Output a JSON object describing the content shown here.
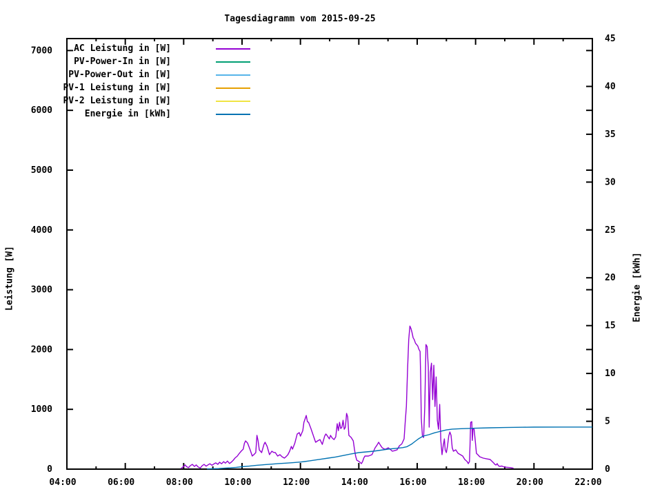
{
  "title": "Tagesdiagramm vom 2015-09-25",
  "colors": {
    "background": "#ffffff",
    "axis": "#000000",
    "ac_leistung": "#9400d3",
    "pv_power_in": "#009e73",
    "pv_power_out": "#56b4e9",
    "pv1_leistung": "#e69f00",
    "pv2_leistung": "#f0e442",
    "energie": "#0072b2"
  },
  "axes": {
    "x": {
      "start_hour": 4,
      "end_hour": 22,
      "major_tick_hours": [
        4,
        6,
        8,
        10,
        12,
        14,
        16,
        18,
        20,
        22
      ],
      "tick_labels": [
        "04:00",
        "06:00",
        "08:00",
        "10:00",
        "12:00",
        "14:00",
        "16:00",
        "18:00",
        "20:00",
        "22:00"
      ],
      "minor_tick_hours": [
        5,
        7,
        9,
        11,
        13,
        15,
        17,
        19,
        21
      ]
    },
    "y_left": {
      "label": "Leistung [W]",
      "min": 0,
      "max": 7200,
      "ticks": [
        0,
        1000,
        2000,
        3000,
        4000,
        5000,
        6000,
        7000
      ]
    },
    "y_right": {
      "label": "Energie [kWh]",
      "min": 0,
      "max": 45,
      "ticks": [
        0,
        5,
        10,
        15,
        20,
        25,
        30,
        35,
        40,
        45
      ]
    }
  },
  "chart_data": {
    "type": "line",
    "title": "Tagesdiagramm vom 2015-09-25",
    "xlabel": "",
    "ylabel_left": "Leistung [W]",
    "ylabel_right": "Energie [kWh]",
    "x_unit": "time_of_day_hours",
    "xlim_hours": [
      4,
      22
    ],
    "ylim_left": [
      0,
      7200
    ],
    "ylim_right": [
      0,
      45
    ],
    "grid": false,
    "legend_position": "top-left-inside",
    "series": [
      {
        "name": "AC Leistung in [W]",
        "color": "#9400d3",
        "axis": "left",
        "visible": true,
        "points": [
          [
            7.9,
            8
          ],
          [
            7.95,
            25
          ],
          [
            8.0,
            45
          ],
          [
            8.05,
            70
          ],
          [
            8.1,
            40
          ],
          [
            8.17,
            25
          ],
          [
            8.23,
            60
          ],
          [
            8.3,
            80
          ],
          [
            8.37,
            45
          ],
          [
            8.43,
            70
          ],
          [
            8.5,
            35
          ],
          [
            8.57,
            20
          ],
          [
            8.63,
            55
          ],
          [
            8.7,
            80
          ],
          [
            8.77,
            50
          ],
          [
            8.83,
            70
          ],
          [
            8.9,
            90
          ],
          [
            8.97,
            65
          ],
          [
            9.03,
            85
          ],
          [
            9.1,
            105
          ],
          [
            9.17,
            80
          ],
          [
            9.23,
            115
          ],
          [
            9.3,
            90
          ],
          [
            9.37,
            125
          ],
          [
            9.43,
            100
          ],
          [
            9.5,
            135
          ],
          [
            9.57,
            95
          ],
          [
            9.63,
            115
          ],
          [
            9.7,
            150
          ],
          [
            9.76,
            185
          ],
          [
            9.84,
            219
          ],
          [
            9.9,
            260
          ],
          [
            9.97,
            300
          ],
          [
            10.04,
            334
          ],
          [
            10.08,
            430
          ],
          [
            10.12,
            472
          ],
          [
            10.19,
            437
          ],
          [
            10.27,
            334
          ],
          [
            10.35,
            219
          ],
          [
            10.42,
            250
          ],
          [
            10.47,
            276
          ],
          [
            10.51,
            564
          ],
          [
            10.55,
            472
          ],
          [
            10.59,
            322
          ],
          [
            10.67,
            276
          ],
          [
            10.75,
            414
          ],
          [
            10.79,
            449
          ],
          [
            10.86,
            380
          ],
          [
            10.94,
            242
          ],
          [
            11.02,
            299
          ],
          [
            11.08,
            280
          ],
          [
            11.14,
            276
          ],
          [
            11.22,
            219
          ],
          [
            11.3,
            242
          ],
          [
            11.37,
            207
          ],
          [
            11.45,
            184
          ],
          [
            11.51,
            210
          ],
          [
            11.57,
            242
          ],
          [
            11.63,
            300
          ],
          [
            11.69,
            380
          ],
          [
            11.73,
            334
          ],
          [
            11.81,
            437
          ],
          [
            11.89,
            587
          ],
          [
            11.96,
            610
          ],
          [
            12.0,
            552
          ],
          [
            12.08,
            644
          ],
          [
            12.12,
            782
          ],
          [
            12.2,
            897
          ],
          [
            12.24,
            794
          ],
          [
            12.28,
            782
          ],
          [
            12.36,
            679
          ],
          [
            12.4,
            621
          ],
          [
            12.48,
            506
          ],
          [
            12.52,
            449
          ],
          [
            12.59,
            472
          ],
          [
            12.67,
            494
          ],
          [
            12.75,
            414
          ],
          [
            12.83,
            552
          ],
          [
            12.87,
            587
          ],
          [
            12.91,
            564
          ],
          [
            12.99,
            506
          ],
          [
            13.03,
            564
          ],
          [
            13.09,
            520
          ],
          [
            13.15,
            494
          ],
          [
            13.21,
            540
          ],
          [
            13.26,
            759
          ],
          [
            13.3,
            644
          ],
          [
            13.34,
            782
          ],
          [
            13.38,
            679
          ],
          [
            13.42,
            700
          ],
          [
            13.46,
            817
          ],
          [
            13.5,
            667
          ],
          [
            13.54,
            700
          ],
          [
            13.58,
            932
          ],
          [
            13.62,
            874
          ],
          [
            13.66,
            564
          ],
          [
            13.74,
            529
          ],
          [
            13.81,
            472
          ],
          [
            13.85,
            334
          ],
          [
            13.89,
            219
          ],
          [
            13.93,
            150
          ],
          [
            14.01,
            127
          ],
          [
            14.09,
            92
          ],
          [
            14.13,
            127
          ],
          [
            14.17,
            184
          ],
          [
            14.21,
            219
          ],
          [
            14.33,
            219
          ],
          [
            14.45,
            242
          ],
          [
            14.56,
            357
          ],
          [
            14.62,
            400
          ],
          [
            14.68,
            449
          ],
          [
            14.74,
            400
          ],
          [
            14.8,
            357
          ],
          [
            14.86,
            340
          ],
          [
            14.92,
            334
          ],
          [
            15.01,
            357
          ],
          [
            15.08,
            330
          ],
          [
            15.15,
            299
          ],
          [
            15.23,
            310
          ],
          [
            15.31,
            322
          ],
          [
            15.39,
            391
          ],
          [
            15.47,
            420
          ],
          [
            15.55,
            506
          ],
          [
            15.59,
            782
          ],
          [
            15.63,
            1047
          ],
          [
            15.67,
            1657
          ],
          [
            15.71,
            2163
          ],
          [
            15.75,
            2393
          ],
          [
            15.79,
            2347
          ],
          [
            15.82,
            2289
          ],
          [
            15.86,
            2197
          ],
          [
            15.9,
            2163
          ],
          [
            15.94,
            2106
          ],
          [
            16.02,
            2060
          ],
          [
            16.06,
            2002
          ],
          [
            16.1,
            1968
          ],
          [
            16.12,
            1500
          ],
          [
            16.14,
            852
          ],
          [
            16.18,
            552
          ],
          [
            16.22,
            529
          ],
          [
            16.26,
            1047
          ],
          [
            16.3,
            2083
          ],
          [
            16.34,
            2048
          ],
          [
            16.38,
            1703
          ],
          [
            16.41,
            702
          ],
          [
            16.45,
            1622
          ],
          [
            16.49,
            1772
          ],
          [
            16.53,
            1162
          ],
          [
            16.57,
            1737
          ],
          [
            16.61,
            1047
          ],
          [
            16.65,
            1541
          ],
          [
            16.69,
            817
          ],
          [
            16.73,
            667
          ],
          [
            16.77,
            1082
          ],
          [
            16.81,
            472
          ],
          [
            16.85,
            242
          ],
          [
            16.89,
            391
          ],
          [
            16.93,
            506
          ],
          [
            16.96,
            322
          ],
          [
            17.0,
            276
          ],
          [
            17.04,
            391
          ],
          [
            17.08,
            552
          ],
          [
            17.12,
            621
          ],
          [
            17.16,
            564
          ],
          [
            17.2,
            357
          ],
          [
            17.24,
            299
          ],
          [
            17.32,
            322
          ],
          [
            17.4,
            264
          ],
          [
            17.48,
            242
          ],
          [
            17.56,
            219
          ],
          [
            17.63,
            161
          ],
          [
            17.71,
            127
          ],
          [
            17.75,
            92
          ],
          [
            17.79,
            127
          ],
          [
            17.81,
            400
          ],
          [
            17.83,
            782
          ],
          [
            17.87,
            794
          ],
          [
            17.89,
            480
          ],
          [
            17.91,
            679
          ],
          [
            17.95,
            667
          ],
          [
            17.99,
            472
          ],
          [
            18.03,
            264
          ],
          [
            18.1,
            230
          ],
          [
            18.14,
            207
          ],
          [
            18.26,
            184
          ],
          [
            18.38,
            172
          ],
          [
            18.5,
            161
          ],
          [
            18.62,
            104
          ],
          [
            18.66,
            80
          ],
          [
            18.7,
            69
          ],
          [
            18.74,
            92
          ],
          [
            18.78,
            58
          ],
          [
            18.82,
            46
          ],
          [
            18.9,
            52
          ],
          [
            18.98,
            35
          ],
          [
            19.1,
            30
          ],
          [
            19.2,
            25
          ],
          [
            19.3,
            15
          ]
        ]
      },
      {
        "name": "PV-Power-In in [W]",
        "color": "#009e73",
        "axis": "left",
        "visible": false,
        "points": []
      },
      {
        "name": "PV-Power-Out in [W]",
        "color": "#56b4e9",
        "axis": "left",
        "visible": false,
        "points": []
      },
      {
        "name": "PV-1 Leistung in [W]",
        "color": "#e69f00",
        "axis": "left",
        "visible": false,
        "points": []
      },
      {
        "name": "PV-2 Leistung in [W]",
        "color": "#f0e442",
        "axis": "left",
        "visible": false,
        "points": []
      },
      {
        "name": "Energie in [kWh]",
        "color": "#0072b2",
        "axis": "right",
        "visible": true,
        "points": [
          [
            8.8,
            0.02
          ],
          [
            9.0,
            0.04
          ],
          [
            9.2,
            0.06
          ],
          [
            9.4,
            0.1
          ],
          [
            9.6,
            0.14
          ],
          [
            9.8,
            0.19
          ],
          [
            10.0,
            0.25
          ],
          [
            10.25,
            0.32
          ],
          [
            10.5,
            0.4
          ],
          [
            10.75,
            0.46
          ],
          [
            11.0,
            0.52
          ],
          [
            11.25,
            0.58
          ],
          [
            11.5,
            0.63
          ],
          [
            11.75,
            0.68
          ],
          [
            12.0,
            0.74
          ],
          [
            12.14,
            0.79
          ],
          [
            12.3,
            0.86
          ],
          [
            12.5,
            0.95
          ],
          [
            12.7,
            1.04
          ],
          [
            12.95,
            1.15
          ],
          [
            13.2,
            1.27
          ],
          [
            13.5,
            1.45
          ],
          [
            13.75,
            1.6
          ],
          [
            14.0,
            1.73
          ],
          [
            14.25,
            1.8
          ],
          [
            14.5,
            1.87
          ],
          [
            14.75,
            1.98
          ],
          [
            15.0,
            2.09
          ],
          [
            15.25,
            2.17
          ],
          [
            15.5,
            2.25
          ],
          [
            15.65,
            2.35
          ],
          [
            15.8,
            2.6
          ],
          [
            15.95,
            2.95
          ],
          [
            16.06,
            3.2
          ],
          [
            16.2,
            3.45
          ],
          [
            16.4,
            3.6
          ],
          [
            16.6,
            3.8
          ],
          [
            16.8,
            3.95
          ],
          [
            17.0,
            4.1
          ],
          [
            17.2,
            4.18
          ],
          [
            17.5,
            4.23
          ],
          [
            18.0,
            4.28
          ],
          [
            18.5,
            4.32
          ],
          [
            19.0,
            4.35
          ],
          [
            19.6,
            4.38
          ],
          [
            20.0,
            4.39
          ],
          [
            21.0,
            4.4
          ],
          [
            22.0,
            4.4
          ]
        ]
      }
    ]
  }
}
